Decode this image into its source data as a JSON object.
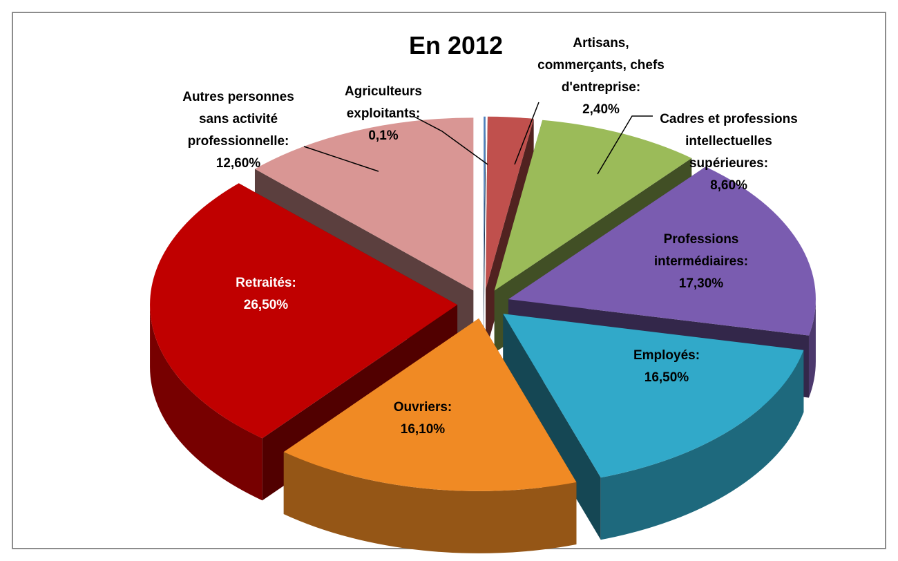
{
  "chart_data": {
    "type": "pie",
    "title": "En 2012",
    "legend": "none",
    "slices": [
      {
        "category": "Agriculteurs exploitants",
        "value": 0.1,
        "color": "#4f81bd",
        "label_lines": [
          "Agriculteurs",
          "exploitants:",
          "0,1%"
        ]
      },
      {
        "category": "Artisans, commerçants, chefs d'entreprise",
        "value": 2.4,
        "color": "#c0504d",
        "label_lines": [
          "Artisans,",
          "commerçants, chefs",
          "d'entreprise:",
          "2,40%"
        ]
      },
      {
        "category": "Cadres et professions intellectuelles supérieures",
        "value": 8.6,
        "color": "#9bbb59",
        "label_lines": [
          "Cadres et professions",
          "intellectuelles",
          "supérieures:",
          "8,60%"
        ]
      },
      {
        "category": "Professions intermédiaires",
        "value": 17.3,
        "color": "#7a5cb0",
        "label_lines": [
          "Professions",
          "intermédiaires:",
          "17,30%"
        ]
      },
      {
        "category": "Employés",
        "value": 16.5,
        "color": "#31a9c9",
        "label_lines": [
          "Employés:",
          "16,50%"
        ]
      },
      {
        "category": "Ouvriers",
        "value": 16.1,
        "color": "#f08a24",
        "label_lines": [
          "Ouvriers:",
          "16,10%"
        ]
      },
      {
        "category": "Retraités",
        "value": 26.5,
        "color": "#c00000",
        "label_lines": [
          "Retraités:",
          "26,50%"
        ]
      },
      {
        "category": "Autres personnes sans activité professionnelle",
        "value": 12.6,
        "color": "#d99694",
        "label_lines": [
          "Autres personnes",
          "sans activité",
          "professionnelle:",
          "12,60%"
        ]
      }
    ]
  }
}
